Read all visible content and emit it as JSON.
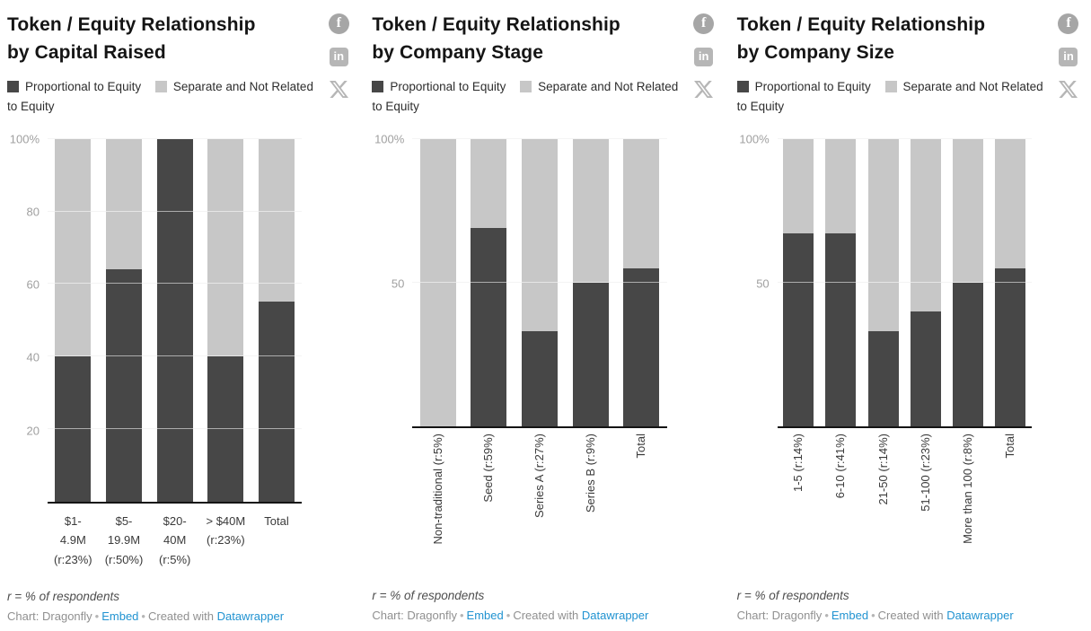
{
  "colors": {
    "proportional_dark": "#474747",
    "separate_light": "#c7c7c7",
    "link_blue": "#2193d1",
    "axis_tick_label": "#a0a0a0",
    "baseline": "#141414"
  },
  "legend": {
    "items": [
      {
        "label": "Proportional to Equity",
        "color": "#474747"
      },
      {
        "label": "Separate and Not Related to Equity",
        "color": "#c7c7c7"
      }
    ]
  },
  "share": {
    "facebook_glyph": "f",
    "linkedin_glyph": "in",
    "icons": [
      "facebook-icon",
      "linkedin-icon",
      "x-icon"
    ]
  },
  "footer": {
    "footnote": "r = % of respondents",
    "credit_prefix": "Chart: Dragonfly",
    "separator": "•",
    "embed_link": "Embed",
    "created_with": "Created with",
    "datawrapper_link": "Datawrapper"
  },
  "chart_data": [
    {
      "type": "bar",
      "stacked": true,
      "percent": true,
      "title": "Token / Equity Relationship by Capital Raised",
      "title_display": "Token / Equity Relationship\nby Capital Raised",
      "categories": [
        "$1-4.9M (r:23%)",
        "$5-19.9M (r:50%)",
        "$20-40M (r:5%)",
        "> $40M (r:23%)",
        "Total"
      ],
      "x_tick_display": [
        "$1-\n4.9M\n(r:23%)",
        "$5-\n19.9M\n(r:50%)",
        "$20-\n40M\n(r:5%)",
        "> $40M\n(r:23%)",
        "Total"
      ],
      "series": [
        {
          "name": "Proportional to Equity",
          "color": "#474747",
          "values": [
            40,
            64,
            100,
            40,
            55
          ]
        },
        {
          "name": "Separate and Not Related to Equity",
          "color": "#c7c7c7",
          "values": [
            60,
            36,
            0,
            60,
            45
          ]
        }
      ],
      "ylim": [
        0,
        100
      ],
      "yticks": [
        20,
        40,
        60,
        80,
        100
      ],
      "ytick_labels": [
        "20",
        "40",
        "60",
        "80",
        "100%"
      ],
      "x_label_orientation": "horizontal",
      "grid": true,
      "legend_position": "top"
    },
    {
      "type": "bar",
      "stacked": true,
      "percent": true,
      "title": "Token / Equity Relationship by Company Stage",
      "title_display": "Token / Equity Relationship\nby Company Stage",
      "categories": [
        "Non-traditional (r:5%)",
        "Seed (r:59%)",
        "Series A (r:27%)",
        "Series B (r:9%)",
        "Total"
      ],
      "series": [
        {
          "name": "Proportional to Equity",
          "color": "#474747",
          "values": [
            0,
            69,
            33,
            50,
            55
          ]
        },
        {
          "name": "Separate and Not Related to Equity",
          "color": "#c7c7c7",
          "values": [
            100,
            31,
            67,
            50,
            45
          ]
        }
      ],
      "ylim": [
        0,
        100
      ],
      "yticks": [
        50,
        100
      ],
      "ytick_labels": [
        "50",
        "100%"
      ],
      "x_label_orientation": "vertical",
      "grid": true,
      "legend_position": "top"
    },
    {
      "type": "bar",
      "stacked": true,
      "percent": true,
      "title": "Token / Equity Relationship by Company Size",
      "title_display": "Token / Equity Relationship\nby Company Size",
      "categories": [
        "1-5 (r:14%)",
        "6-10 (r:41%)",
        "21-50 (r:14%)",
        "51-100 (r:23%)",
        "More than 100 (r:8%)",
        "Total"
      ],
      "series": [
        {
          "name": "Proportional to Equity",
          "color": "#474747",
          "values": [
            67,
            67,
            33,
            40,
            50,
            55
          ]
        },
        {
          "name": "Separate and Not Related to Equity",
          "color": "#c7c7c7",
          "values": [
            33,
            33,
            67,
            60,
            50,
            45
          ]
        }
      ],
      "ylim": [
        0,
        100
      ],
      "yticks": [
        50,
        100
      ],
      "ytick_labels": [
        "50",
        "100%"
      ],
      "x_label_orientation": "vertical",
      "grid": true,
      "legend_position": "top"
    }
  ]
}
